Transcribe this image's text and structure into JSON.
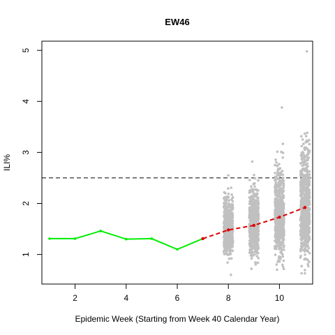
{
  "chart_data": {
    "type": "scatter",
    "title": "EW46",
    "xlabel": "Epidemic Week (Starting from Week 40 Calendar Year)",
    "ylabel": "ILI%",
    "xlim": [
      0.7,
      11.3
    ],
    "ylim": [
      0.42,
      5.18
    ],
    "x_ticks": [
      2,
      4,
      6,
      8,
      10
    ],
    "y_ticks": [
      1,
      2,
      3,
      4,
      5
    ],
    "grid": false,
    "legend": "none",
    "threshold": {
      "y": 2.5,
      "style": "dashed",
      "color": "#000000"
    },
    "series": [
      {
        "role": "observed",
        "color": "#00ee00",
        "x": [
          1,
          2,
          3,
          4,
          5,
          6,
          7
        ],
        "y": [
          1.31,
          1.31,
          1.46,
          1.3,
          1.31,
          1.1,
          1.31
        ]
      },
      {
        "role": "forecast-mean",
        "color": "#dd0000",
        "x": [
          7,
          8,
          9,
          10,
          11
        ],
        "y": [
          1.31,
          1.48,
          1.57,
          1.73,
          1.92
        ]
      },
      {
        "role": "forecast-samples",
        "color": "#c0c0c0",
        "x": [
          8,
          9,
          10,
          11
        ],
        "center": [
          1.48,
          1.57,
          1.73,
          1.92
        ],
        "spread": [
          0.22,
          0.27,
          0.35,
          0.45
        ],
        "min": [
          0.6,
          0.72,
          0.7,
          0.63
        ],
        "max": [
          2.55,
          2.82,
          3.88,
          4.98
        ]
      }
    ]
  }
}
